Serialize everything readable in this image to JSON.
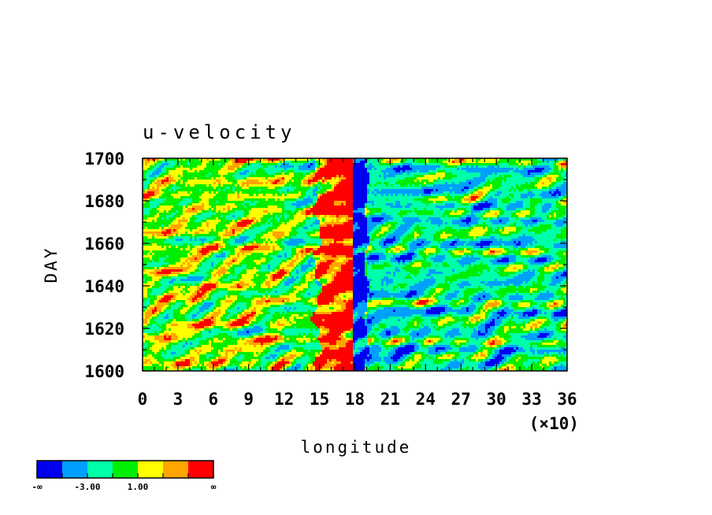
{
  "chart_data": {
    "type": "heatmap",
    "title": "u-velocity",
    "xlabel": "longitude",
    "ylabel": "DAY",
    "x_multiplier_label": "(×10)",
    "xlim": [
      0,
      36
    ],
    "ylim": [
      1600,
      1700
    ],
    "x_ticks": [
      "0",
      "3",
      "6",
      "9",
      "12",
      "15",
      "18",
      "21",
      "24",
      "27",
      "30",
      "33",
      "36"
    ],
    "y_ticks": [
      "1600",
      "1620",
      "1640",
      "1660",
      "1680",
      "1700"
    ],
    "colorbar": {
      "colors": [
        "#0000f0",
        "#00a0ff",
        "#00ffaa",
        "#00ee00",
        "#ffff00",
        "#ffa500",
        "#ff0000"
      ],
      "labels": [
        "-∞",
        "-3.00",
        "1.00",
        "∞"
      ]
    },
    "features": [
      {
        "longitude_range": [
          15,
          18
        ],
        "value_band": "high (red/orange)"
      },
      {
        "longitude_range": [
          18,
          19
        ],
        "value_band": "low (dark blue)"
      }
    ]
  }
}
